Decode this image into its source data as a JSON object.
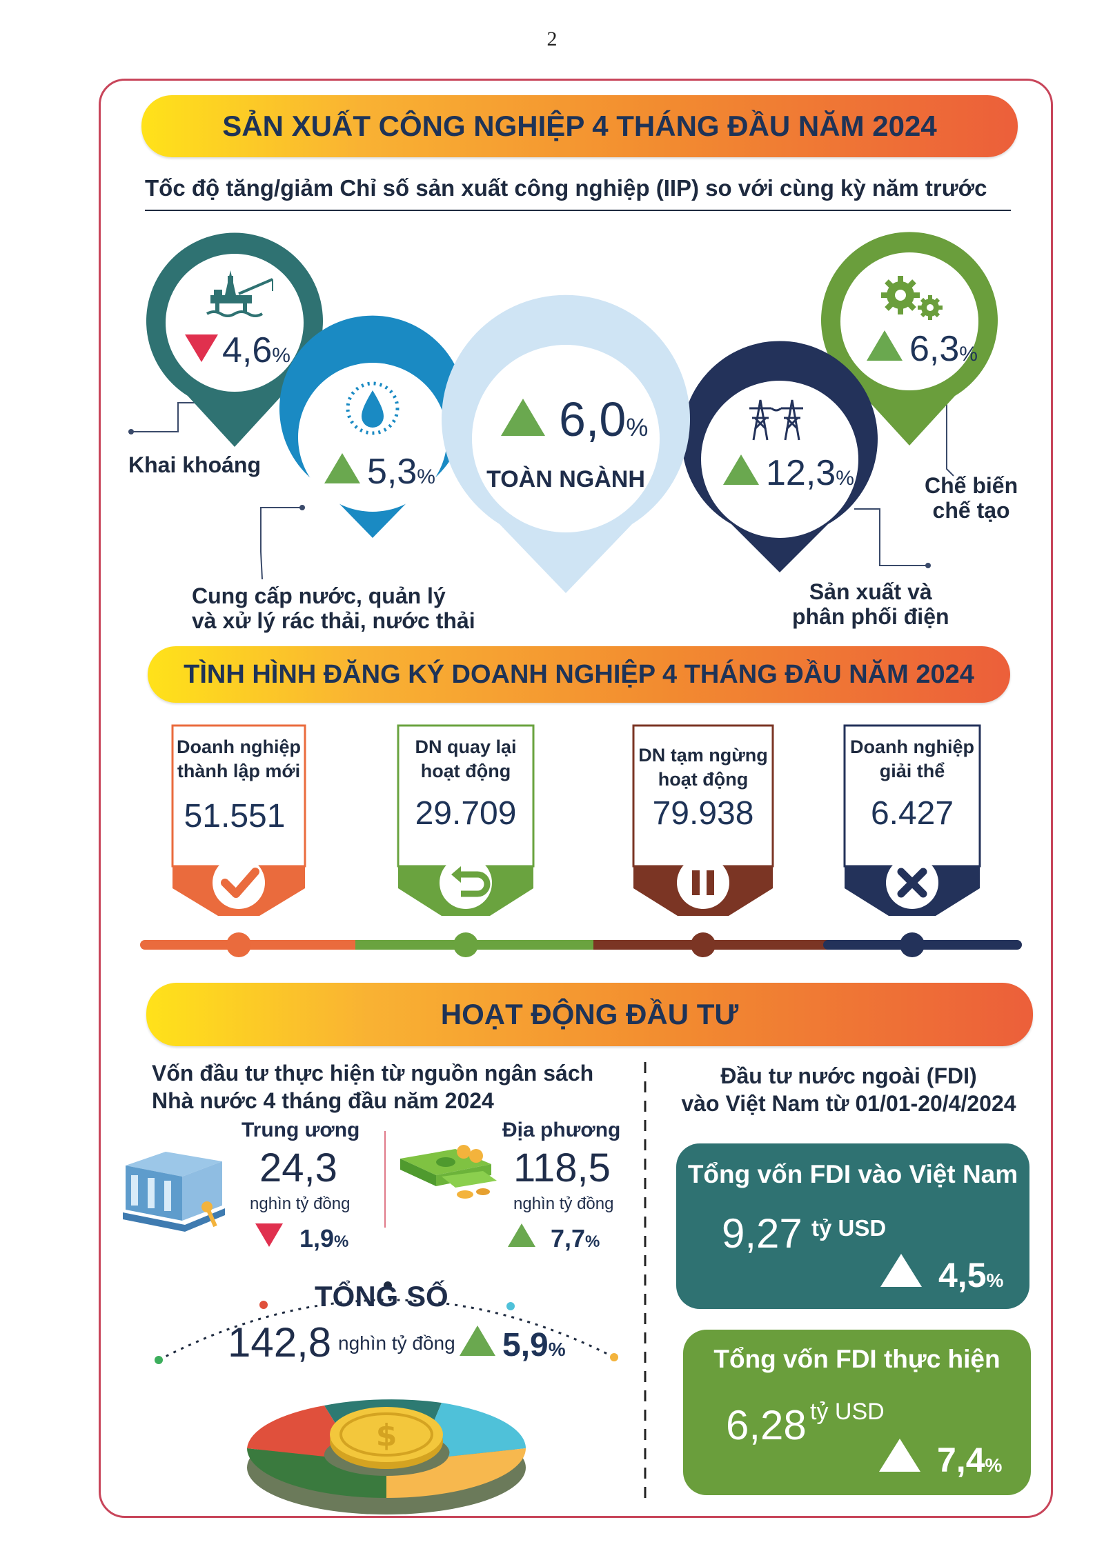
{
  "page_number": "2",
  "industry": {
    "banner": "SẢN XUẤT CÔNG NGHIỆP 4 THÁNG ĐẦU NĂM 2024",
    "subtitle": "Tốc độ tăng/giảm Chỉ số sản xuất công nghiệp (IIP) so với cùng kỳ năm trước",
    "percent_sign": "%",
    "mining": {
      "value": "4,6",
      "label": "Khai khoáng",
      "direction": "down",
      "color": "#2f7272"
    },
    "water": {
      "value": "5,3",
      "label_line1": "Cung cấp nước, quản lý",
      "label_line2": "và xử lý rác thải, nước thải",
      "direction": "up",
      "color": "#1a8ac3"
    },
    "total": {
      "value": "6,0",
      "label": "TOÀN NGÀNH",
      "direction": "up",
      "color": "#cfe4f4"
    },
    "electricity": {
      "value": "12,3",
      "label_line1": "Sản xuất và",
      "label_line2": "phân phối điện",
      "direction": "up",
      "color": "#23325a"
    },
    "manufacturing": {
      "value": "6,3",
      "label_line1": "Chế biến",
      "label_line2": "chế tạo",
      "direction": "up",
      "color": "#6a9e3c"
    }
  },
  "enterprise": {
    "banner": "TÌNH HÌNH ĐĂNG KÝ DOANH NGHIỆP 4 THÁNG ĐẦU NĂM 2024",
    "boxes": [
      {
        "title_line1": "Doanh nghiệp",
        "title_line2": "thành lập mới",
        "value": "51.551",
        "color": "#ea6b3d",
        "icon": "check-icon"
      },
      {
        "title_line1": "DN quay lại",
        "title_line2": "hoạt động",
        "value": "29.709",
        "color": "#6aa33f",
        "icon": "return-icon"
      },
      {
        "title_line1": "DN tạm ngừng",
        "title_line2": "hoạt động",
        "value": "79.938",
        "color": "#7b3524",
        "icon": "pause-icon"
      },
      {
        "title_line1": "Doanh nghiệp",
        "title_line2": "giải thể",
        "value": "6.427",
        "color": "#23325a",
        "icon": "x-icon"
      }
    ]
  },
  "investment": {
    "banner": "HOẠT ĐỘNG ĐẦU TƯ",
    "state_title_line1": "Vốn đầu tư thực hiện từ nguồn ngân sách",
    "state_title_line2": "Nhà nước 4 tháng đầu năm 2024",
    "central": {
      "label": "Trung ương",
      "value": "24,3",
      "unit": "nghìn tỷ đồng",
      "change": "1,9",
      "direction": "down"
    },
    "local": {
      "label": "Địa phương",
      "value": "118,5",
      "unit": "nghìn tỷ đồng",
      "change": "7,7",
      "direction": "up"
    },
    "total": {
      "label": "TỔNG SỐ",
      "value": "142,8",
      "unit": "nghìn tỷ đồng",
      "change": "5,9",
      "direction": "up"
    },
    "fdi_title_line1": "Đầu tư nước ngoài (FDI)",
    "fdi_title_line2": "vào Việt Nam từ 01/01-20/4/2024",
    "fdi_total": {
      "title": "Tổng vốn FDI vào Việt Nam",
      "value": "9,27",
      "unit": "tỷ USD",
      "change": "4,5",
      "color": "#2f7272"
    },
    "fdi_disbursed": {
      "title": "Tổng vốn FDI thực hiện",
      "value": "6,28",
      "unit": "tỷ USD",
      "change": "7,4",
      "color": "#6a9e3c"
    }
  }
}
